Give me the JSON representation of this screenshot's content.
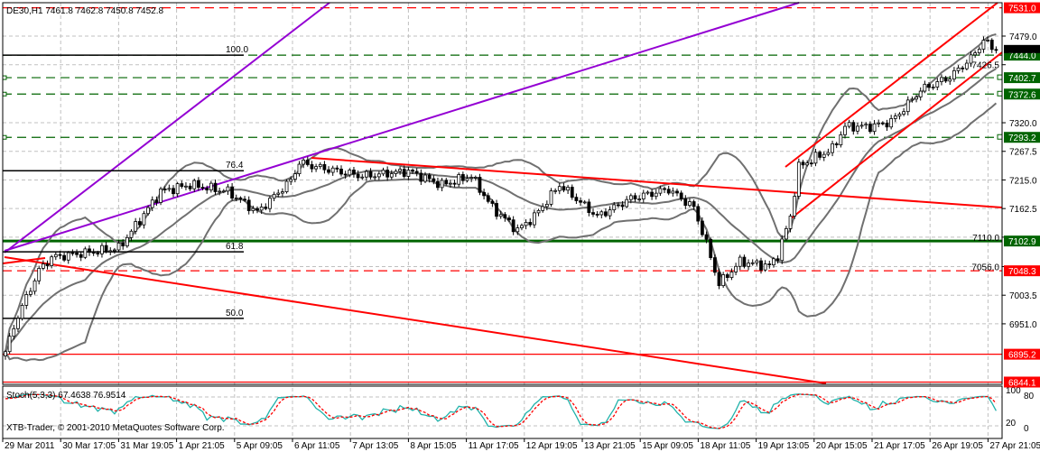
{
  "chart_data": {
    "type": "candlestick",
    "title": "DE30,H1  7461.8 7462.8 7450.8 7452.8",
    "symbol": "DE30",
    "timeframe": "H1",
    "ohlc_last": {
      "open": 7461.8,
      "high": 7462.8,
      "low": 7450.8,
      "close": 7452.8
    },
    "price_ticks": [
      7479.0,
      7426.5,
      7320.0,
      7267.5,
      7215.0,
      7162.5,
      7110.0,
      7056.0,
      7003.5,
      6951.0
    ],
    "price_range": [
      6840,
      7535
    ],
    "time_ticks": [
      "29 Mar 2011",
      "30 Mar 17:05",
      "31 Mar 19:05",
      "1 Apr 21:05",
      "5 Apr 09:05",
      "6 Apr 11:05",
      "7 Apr 13:05",
      "8 Apr 15:05",
      "11 Apr 17:05",
      "12 Apr 19:05",
      "13 Apr 21:05",
      "15 Apr 09:05",
      "18 Apr 11:05",
      "19 Apr 13:05",
      "20 Apr 15:05",
      "21 Apr 17:05",
      "26 Apr 19:05",
      "27 Apr 21:05"
    ],
    "grid": true,
    "close_path": [
      [
        0,
        6900
      ],
      [
        3,
        6966
      ],
      [
        8,
        7049
      ],
      [
        11,
        7073
      ],
      [
        20,
        7082
      ],
      [
        27,
        7090
      ],
      [
        31,
        7131
      ],
      [
        37,
        7194
      ],
      [
        44,
        7206
      ],
      [
        53,
        7194
      ],
      [
        60,
        7156
      ],
      [
        68,
        7214
      ],
      [
        70,
        7247
      ],
      [
        74,
        7239
      ],
      [
        85,
        7222
      ],
      [
        96,
        7231
      ],
      [
        104,
        7206
      ],
      [
        111,
        7222
      ],
      [
        116,
        7164
      ],
      [
        122,
        7123
      ],
      [
        126,
        7148
      ],
      [
        132,
        7206
      ],
      [
        141,
        7148
      ],
      [
        149,
        7181
      ],
      [
        158,
        7198
      ],
      [
        164,
        7164
      ],
      [
        167,
        7098
      ],
      [
        170,
        7024
      ],
      [
        175,
        7065
      ],
      [
        182,
        7057
      ],
      [
        184,
        7077
      ],
      [
        187,
        7148
      ],
      [
        189,
        7239
      ],
      [
        193,
        7256
      ],
      [
        197,
        7272
      ],
      [
        200,
        7313
      ],
      [
        206,
        7313
      ],
      [
        211,
        7322
      ],
      [
        214,
        7346
      ],
      [
        218,
        7380
      ],
      [
        225,
        7404
      ],
      [
        230,
        7438
      ],
      [
        233,
        7471
      ],
      [
        236,
        7452.8
      ]
    ],
    "price_labels": [
      {
        "value": "7531.0",
        "price": 7531.0,
        "color": "#ff0000",
        "style": "dashed"
      },
      {
        "value": "7444.0",
        "price": 7444.0,
        "color": "#006400",
        "style": "dashed"
      },
      {
        "value": "7402.7",
        "price": 7402.7,
        "color": "#006400",
        "style": "dashed"
      },
      {
        "value": "7372.6",
        "price": 7372.6,
        "color": "#006400",
        "style": "dashed"
      },
      {
        "value": "7293.2",
        "price": 7293.2,
        "color": "#006400",
        "style": "dashed"
      },
      {
        "value": "7102.9",
        "price": 7102.9,
        "color": "#006400",
        "style": "solid"
      },
      {
        "value": "7048.3",
        "price": 7048.3,
        "color": "#ff0000",
        "style": "dashed"
      },
      {
        "value": "6895.2",
        "price": 6895.2,
        "color": "#ff0000",
        "style": "solid"
      },
      {
        "value": "6844.1",
        "price": 6844.1,
        "color": "#ff0000",
        "style": "solid"
      }
    ],
    "current_price": "7452.8",
    "fibonacci": [
      {
        "level": "100.0",
        "price": 7444.0
      },
      {
        "level": "76.4",
        "price": 7232
      },
      {
        "level": "61.8",
        "price": 7083
      },
      {
        "level": "50.0",
        "price": 6961
      }
    ],
    "indicators": {
      "bollinger": {
        "period": 20,
        "color": "#707070"
      },
      "stochastic": {
        "label": "Stoch(5,3,3) 67.4638 76.9514",
        "k_color": "#20b2aa",
        "d_color": "#ff0000",
        "ticks": [
          "100",
          "80",
          "20",
          "0"
        ]
      }
    },
    "colors": {
      "trend_red": "#ff0000",
      "trend_purple": "#9400d3",
      "grid": "#c0c0c0"
    }
  },
  "footer": {
    "copyright": "XTB-Trader, © 2001-2010 MetaQuotes Software Corp."
  }
}
